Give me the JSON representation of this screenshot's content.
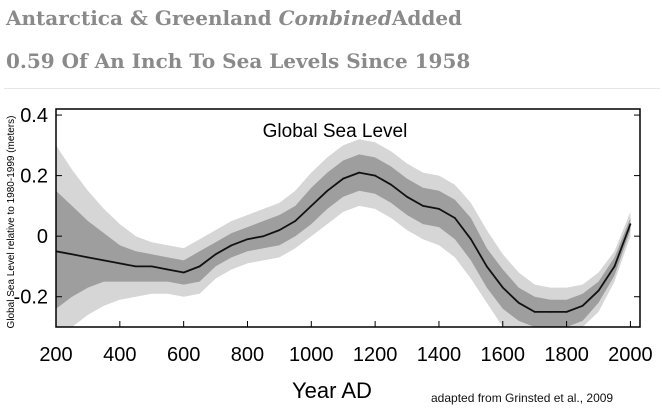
{
  "headline": {
    "line1_part1": "Antarctica & Greenland ",
    "line1_italic": "Combined",
    "line1_part2": "Added",
    "line2": "0.59 Of An Inch To Sea Levels Since 1958"
  },
  "credit": "adapted from Grinsted et al., 2009",
  "chart_data": {
    "type": "line",
    "title": "Global Sea Level",
    "xlabel": "Year AD",
    "ylabel": "Global Sea Level relative to 1980-1999 (meters)",
    "xlim": [
      200,
      2030
    ],
    "ylim": [
      -0.3,
      0.42
    ],
    "xticks": [
      200,
      400,
      600,
      800,
      1000,
      1200,
      1400,
      1600,
      1800,
      2000
    ],
    "yticks": [
      {
        "value": 0.4,
        "label": "0.4"
      },
      {
        "value": 0.2,
        "label": "0.2"
      },
      {
        "value": 0,
        "label": "0"
      },
      {
        "value": -0.2,
        "label": "-0.2"
      }
    ],
    "grid": false,
    "colors": {
      "median": "#111111",
      "inner_band": "#9e9e9e",
      "outer_band": "#d6d6d6"
    },
    "x": [
      200,
      250,
      300,
      350,
      400,
      450,
      500,
      550,
      600,
      650,
      700,
      750,
      800,
      850,
      900,
      950,
      1000,
      1050,
      1100,
      1150,
      1200,
      1250,
      1300,
      1350,
      1400,
      1450,
      1500,
      1550,
      1600,
      1650,
      1700,
      1750,
      1800,
      1850,
      1900,
      1950,
      2000
    ],
    "series": [
      {
        "role": "median",
        "values": [
          -0.05,
          -0.06,
          -0.07,
          -0.08,
          -0.09,
          -0.1,
          -0.1,
          -0.11,
          -0.12,
          -0.1,
          -0.06,
          -0.03,
          -0.01,
          0.0,
          0.02,
          0.05,
          0.1,
          0.15,
          0.19,
          0.21,
          0.2,
          0.17,
          0.13,
          0.1,
          0.09,
          0.06,
          -0.01,
          -0.1,
          -0.17,
          -0.22,
          -0.25,
          -0.25,
          -0.25,
          -0.23,
          -0.18,
          -0.1,
          0.04
        ]
      },
      {
        "role": "inner_low",
        "values": [
          -0.24,
          -0.2,
          -0.17,
          -0.15,
          -0.15,
          -0.15,
          -0.15,
          -0.15,
          -0.16,
          -0.15,
          -0.1,
          -0.07,
          -0.05,
          -0.04,
          -0.03,
          0.0,
          0.04,
          0.09,
          0.13,
          0.15,
          0.14,
          0.11,
          0.07,
          0.04,
          0.03,
          -0.01,
          -0.08,
          -0.17,
          -0.24,
          -0.28,
          -0.3,
          -0.3,
          -0.3,
          -0.28,
          -0.22,
          -0.13,
          0.02
        ]
      },
      {
        "role": "inner_high",
        "values": [
          0.15,
          0.1,
          0.05,
          0.01,
          -0.03,
          -0.05,
          -0.06,
          -0.07,
          -0.08,
          -0.05,
          -0.02,
          0.01,
          0.03,
          0.05,
          0.07,
          0.1,
          0.16,
          0.21,
          0.25,
          0.27,
          0.26,
          0.23,
          0.19,
          0.16,
          0.15,
          0.12,
          0.06,
          -0.04,
          -0.11,
          -0.17,
          -0.2,
          -0.21,
          -0.21,
          -0.19,
          -0.15,
          -0.07,
          0.06
        ]
      },
      {
        "role": "outer_low",
        "values": [
          -0.3,
          -0.3,
          -0.26,
          -0.23,
          -0.21,
          -0.2,
          -0.19,
          -0.19,
          -0.2,
          -0.19,
          -0.14,
          -0.11,
          -0.09,
          -0.08,
          -0.07,
          -0.04,
          0.0,
          0.04,
          0.08,
          0.1,
          0.09,
          0.06,
          0.02,
          -0.01,
          -0.03,
          -0.07,
          -0.14,
          -0.22,
          -0.3,
          -0.3,
          -0.3,
          -0.3,
          -0.3,
          -0.3,
          -0.25,
          -0.15,
          0.0
        ]
      },
      {
        "role": "outer_high",
        "values": [
          0.3,
          0.22,
          0.15,
          0.09,
          0.04,
          0.0,
          -0.02,
          -0.03,
          -0.04,
          -0.01,
          0.02,
          0.05,
          0.07,
          0.09,
          0.11,
          0.15,
          0.21,
          0.26,
          0.3,
          0.32,
          0.31,
          0.28,
          0.24,
          0.21,
          0.2,
          0.17,
          0.11,
          0.02,
          -0.06,
          -0.12,
          -0.16,
          -0.17,
          -0.17,
          -0.16,
          -0.12,
          -0.05,
          0.08
        ]
      }
    ]
  }
}
